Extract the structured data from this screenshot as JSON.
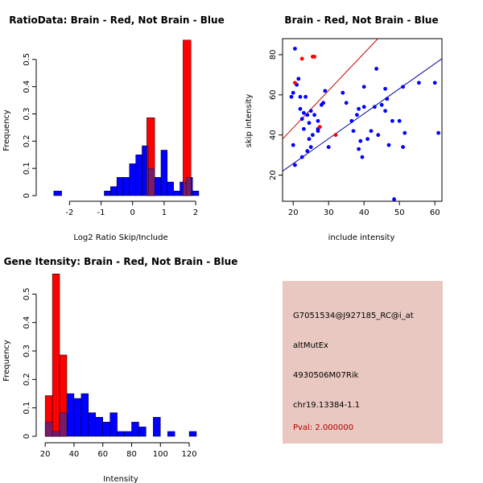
{
  "colors": {
    "red": "#ff0000",
    "blue": "#0000ff",
    "overlap": "#7a1a6a",
    "panel_bg": "#e8c8c0",
    "pval": "#b00000"
  },
  "info_panel": {
    "probe_id": "G7051534@J927185_RC@i_at",
    "event_type": "altMutEx",
    "gene": "4930506M07Rik",
    "location": "chr19.13384-1.1",
    "pval": "Pval: 2.000000"
  },
  "chart_data": [
    {
      "type": "bar",
      "subtype": "histogram",
      "title": "RatioData: Brain - Red, Not Brain - Blue",
      "xlabel": "Log2 Ratio Skip/Include",
      "ylabel": "Frequency",
      "xlim": [
        -2.75,
        2.1
      ],
      "ylim": [
        0,
        0.6
      ],
      "xticks": [
        -2,
        -1,
        0,
        1,
        2
      ],
      "yticks": [
        0,
        0.1,
        0.2,
        0.3,
        0.4,
        0.5
      ],
      "series": [
        {
          "name": "Not Brain",
          "color": "blue",
          "bins": [
            [
              -2.5,
              -2.25,
              0.017
            ],
            [
              -0.9,
              -0.7,
              0.017
            ],
            [
              -0.7,
              -0.5,
              0.033
            ],
            [
              -0.5,
              -0.3,
              0.067
            ],
            [
              -0.3,
              -0.1,
              0.067
            ],
            [
              -0.1,
              0.1,
              0.117
            ],
            [
              0.1,
              0.3,
              0.15
            ],
            [
              0.3,
              0.5,
              0.183
            ],
            [
              0.5,
              0.7,
              0.1
            ],
            [
              0.7,
              0.9,
              0.067
            ],
            [
              0.9,
              1.1,
              0.167
            ],
            [
              1.1,
              1.3,
              0.05
            ],
            [
              1.3,
              1.5,
              0.017
            ],
            [
              1.5,
              1.7,
              0.05
            ],
            [
              1.7,
              1.9,
              0.067
            ],
            [
              1.9,
              2.1,
              0.017
            ]
          ]
        },
        {
          "name": "Brain",
          "color": "red",
          "bins": [
            [
              0.45,
              0.7,
              0.286
            ],
            [
              1.6,
              1.85,
              0.571
            ]
          ]
        }
      ]
    },
    {
      "type": "scatter",
      "title": "Brain - Red, Not Brain - Blue",
      "xlabel": "include intensity",
      "ylabel": "skip intensity",
      "xlim": [
        17,
        62
      ],
      "ylim": [
        7,
        88
      ],
      "xticks": [
        20,
        30,
        40,
        50,
        60
      ],
      "yticks": [
        20,
        40,
        60,
        80
      ],
      "series": [
        {
          "name": "Not Brain",
          "color": "blue",
          "points": [
            [
              20.5,
              83
            ],
            [
              21.5,
              68
            ],
            [
              21,
              65
            ],
            [
              20,
              61
            ],
            [
              19.5,
              59
            ],
            [
              22,
              59
            ],
            [
              23.5,
              59
            ],
            [
              22,
              53
            ],
            [
              23,
              51
            ],
            [
              24,
              50
            ],
            [
              22.5,
              48
            ],
            [
              24.5,
              46
            ],
            [
              25,
              52
            ],
            [
              26,
              50
            ],
            [
              27,
              47
            ],
            [
              27.5,
              44
            ],
            [
              28,
              55
            ],
            [
              29,
              62
            ],
            [
              28.5,
              56
            ],
            [
              23,
              43
            ],
            [
              24.5,
              38
            ],
            [
              25.5,
              40
            ],
            [
              27,
              42
            ],
            [
              25,
              34
            ],
            [
              24,
              32
            ],
            [
              22.5,
              29
            ],
            [
              20.5,
              25
            ],
            [
              20,
              35
            ],
            [
              30,
              34
            ],
            [
              34,
              61
            ],
            [
              35,
              56
            ],
            [
              36.5,
              47
            ],
            [
              37,
              42
            ],
            [
              38,
              50
            ],
            [
              38.5,
              53
            ],
            [
              40,
              54
            ],
            [
              40,
              64
            ],
            [
              38.5,
              33
            ],
            [
              39,
              37
            ],
            [
              39.5,
              29
            ],
            [
              41,
              38
            ],
            [
              42,
              42
            ],
            [
              43,
              54
            ],
            [
              43.5,
              73
            ],
            [
              44,
              40
            ],
            [
              45,
              55
            ],
            [
              46,
              63
            ],
            [
              46.5,
              58
            ],
            [
              46,
              52
            ],
            [
              47,
              35
            ],
            [
              48,
              47
            ],
            [
              48.5,
              8
            ],
            [
              50,
              47
            ],
            [
              51,
              64
            ],
            [
              51.5,
              41
            ],
            [
              51,
              34
            ],
            [
              55.5,
              66
            ],
            [
              60,
              66
            ],
            [
              61,
              41
            ],
            [
              27,
              43
            ]
          ]
        },
        {
          "name": "Brain",
          "color": "red",
          "points": [
            [
              22.5,
              78
            ],
            [
              25.5,
              79
            ],
            [
              26,
              79
            ],
            [
              20.5,
              66
            ],
            [
              27.5,
              44
            ],
            [
              32,
              40
            ]
          ]
        }
      ],
      "lines": [
        {
          "color": "red",
          "from": [
            17,
            38
          ],
          "to": [
            45,
            90
          ]
        },
        {
          "color": "blue",
          "from": [
            17,
            22
          ],
          "to": [
            62,
            78
          ]
        }
      ]
    },
    {
      "type": "bar",
      "subtype": "histogram",
      "title": "Gene Itensity: Brain - Red, Not Brain - Blue",
      "xlabel": "Intensity",
      "ylabel": "Frequency",
      "xlim": [
        16,
        125
      ],
      "ylim": [
        0,
        0.6
      ],
      "xticks": [
        20,
        40,
        60,
        80,
        100,
        120
      ],
      "yticks": [
        0,
        0.1,
        0.2,
        0.3,
        0.4,
        0.5
      ],
      "series": [
        {
          "name": "Not Brain",
          "color": "blue",
          "bins": [
            [
              20,
              25,
              0.05
            ],
            [
              25,
              30,
              0.017
            ],
            [
              30,
              35,
              0.083
            ],
            [
              35,
              40,
              0.15
            ],
            [
              40,
              45,
              0.133
            ],
            [
              45,
              50,
              0.15
            ],
            [
              50,
              55,
              0.083
            ],
            [
              55,
              60,
              0.067
            ],
            [
              60,
              65,
              0.05
            ],
            [
              65,
              70,
              0.083
            ],
            [
              70,
              75,
              0.017
            ],
            [
              75,
              80,
              0.017
            ],
            [
              80,
              85,
              0.05
            ],
            [
              85,
              90,
              0.033
            ],
            [
              95,
              100,
              0.067
            ],
            [
              105,
              110,
              0.017
            ],
            [
              120,
              125,
              0.017
            ]
          ]
        },
        {
          "name": "Brain",
          "color": "red",
          "bins": [
            [
              20,
              25,
              0.143
            ],
            [
              25,
              30,
              0.571
            ],
            [
              30,
              35,
              0.286
            ]
          ]
        }
      ]
    }
  ]
}
